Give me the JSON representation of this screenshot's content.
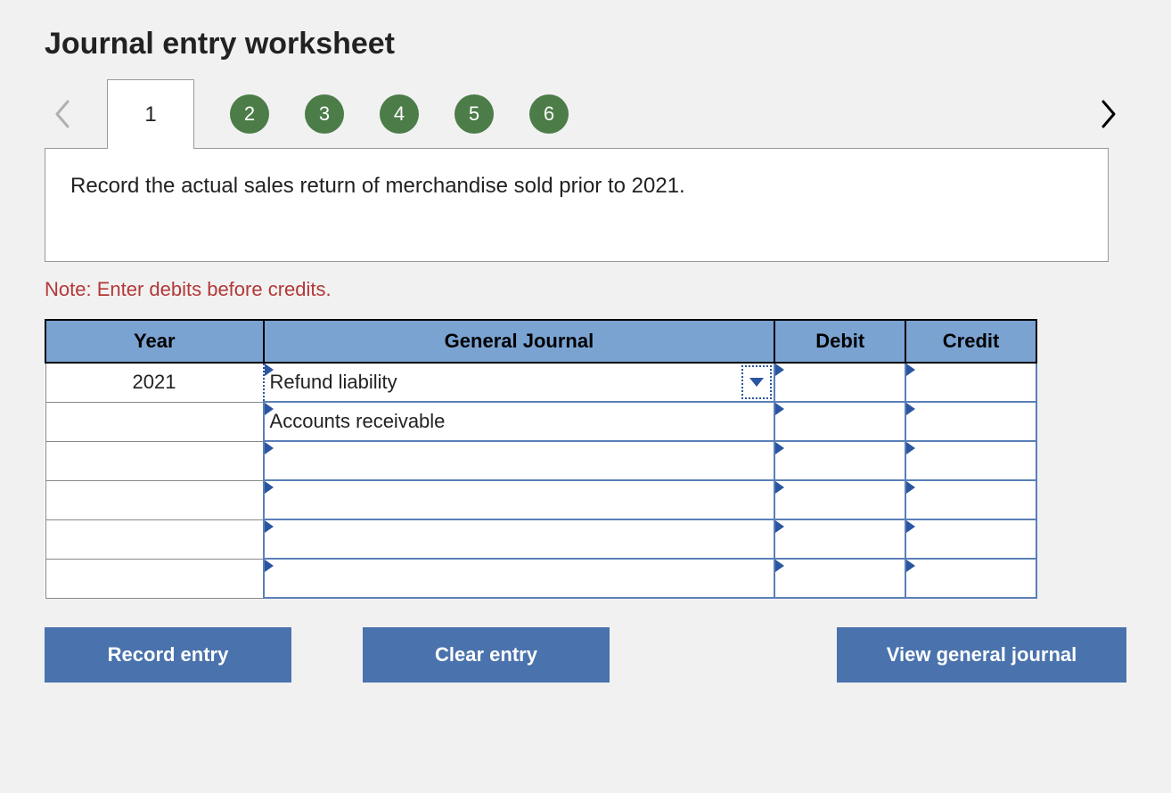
{
  "title": "Journal entry worksheet",
  "tabs": {
    "active": "1",
    "others": [
      "2",
      "3",
      "4",
      "5",
      "6"
    ]
  },
  "prompt": "Record the actual sales return of merchandise sold prior to 2021.",
  "note": "Note: Enter debits before credits.",
  "table": {
    "headers": {
      "year": "Year",
      "gj": "General Journal",
      "debit": "Debit",
      "credit": "Credit"
    },
    "rows": [
      {
        "year": "2021",
        "gj": "Refund liability",
        "debit": "",
        "credit": "",
        "active": true
      },
      {
        "year": "",
        "gj": "Accounts receivable",
        "debit": "",
        "credit": "",
        "active": false
      },
      {
        "year": "",
        "gj": "",
        "debit": "",
        "credit": "",
        "active": false
      },
      {
        "year": "",
        "gj": "",
        "debit": "",
        "credit": "",
        "active": false
      },
      {
        "year": "",
        "gj": "",
        "debit": "",
        "credit": "",
        "active": false
      },
      {
        "year": "",
        "gj": "",
        "debit": "",
        "credit": "",
        "active": false
      }
    ]
  },
  "buttons": {
    "record": "Record entry",
    "clear": "Clear entry",
    "view": "View general journal"
  },
  "colors": {
    "header_bg": "#7aa3d2",
    "circle_bg": "#4c7c48",
    "button_bg": "#4a72ad",
    "cell_border": "#5b7fb8",
    "marker": "#2a55a0",
    "note_color": "#b33838"
  }
}
